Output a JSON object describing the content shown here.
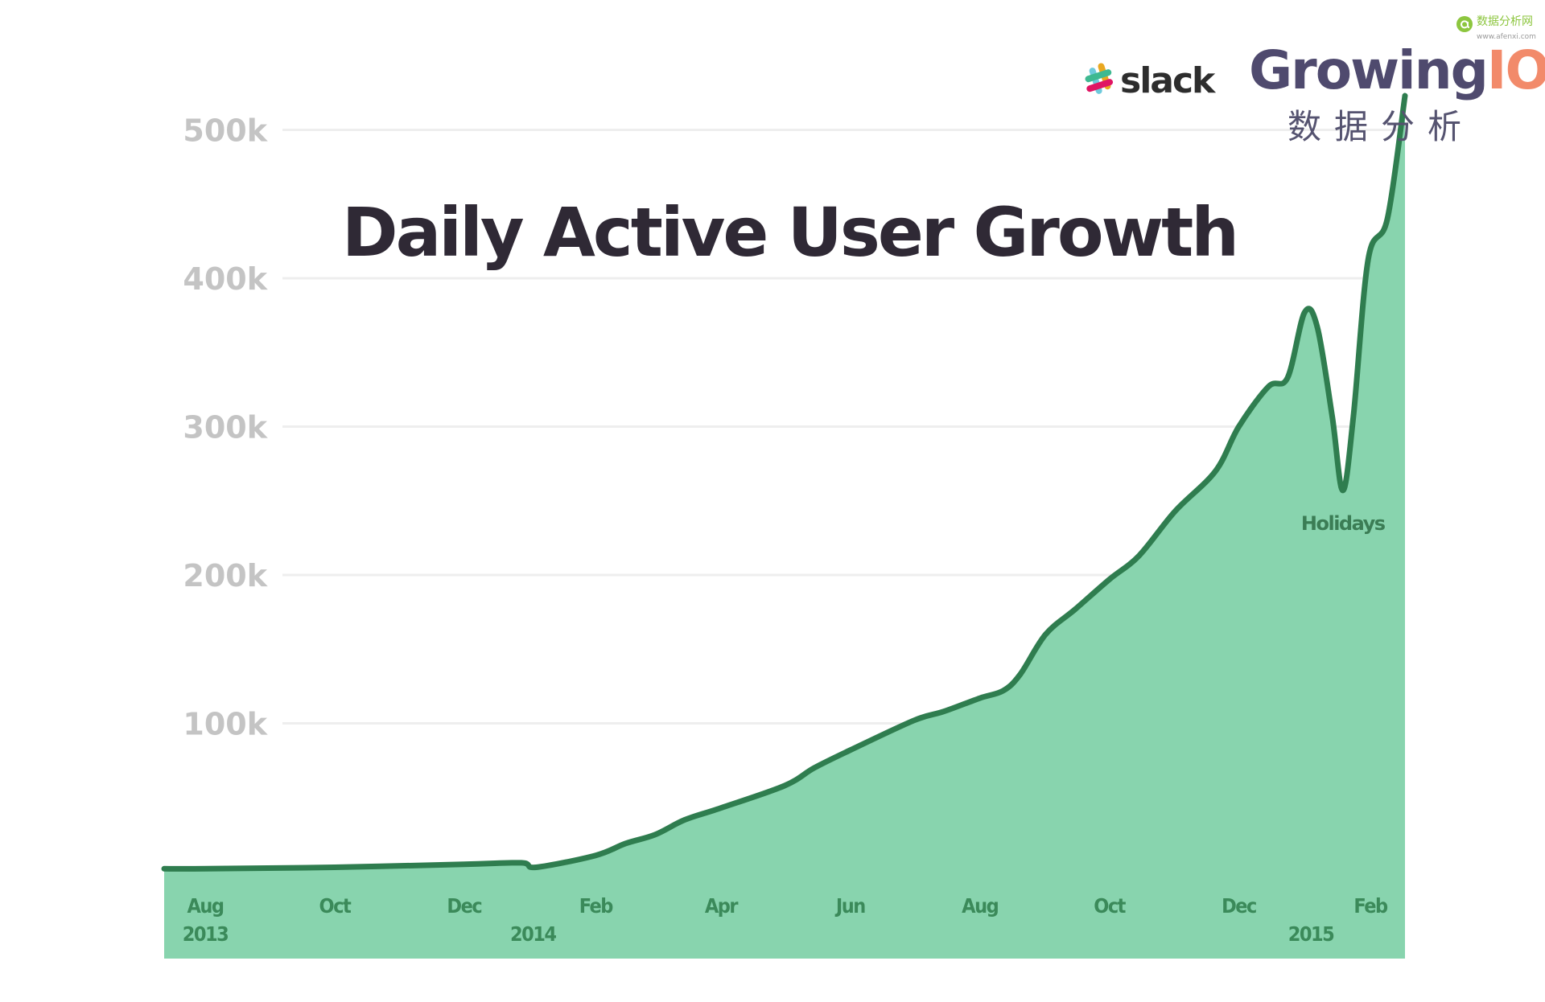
{
  "chart_data": {
    "type": "area",
    "title": "Daily Active User Growth",
    "xlabel": "",
    "ylabel": "",
    "ylim": [
      0,
      500000
    ],
    "yticks": [
      100000,
      200000,
      300000,
      400000,
      500000
    ],
    "ytick_labels": [
      "100k",
      "200k",
      "300k",
      "400k",
      "500k"
    ],
    "xtick_labels": [
      {
        "date": "2013-08-01",
        "label": "Aug",
        "year": "2013"
      },
      {
        "date": "2013-10-01",
        "label": "Oct"
      },
      {
        "date": "2013-12-01",
        "label": "Dec"
      },
      {
        "date": "2014-02-01",
        "label": "Feb",
        "year": "2014"
      },
      {
        "date": "2014-04-01",
        "label": "Apr"
      },
      {
        "date": "2014-06-01",
        "label": "Jun"
      },
      {
        "date": "2014-08-01",
        "label": "Aug"
      },
      {
        "date": "2014-10-01",
        "label": "Oct"
      },
      {
        "date": "2014-12-01",
        "label": "Dec"
      },
      {
        "date": "2015-02-01",
        "label": "Feb",
        "year": "2015"
      }
    ],
    "grid": true,
    "colors": {
      "fill": "#88d4ae",
      "line": "#2f7d4f",
      "grid": "#eeeeee"
    },
    "points": [
      [
        "2013-07-15",
        2000
      ],
      [
        "2013-08-01",
        2000
      ],
      [
        "2013-10-01",
        3000
      ],
      [
        "2013-12-01",
        5000
      ],
      [
        "2013-12-28",
        6000
      ],
      [
        "2014-01-04",
        3000
      ],
      [
        "2014-02-01",
        11000
      ],
      [
        "2014-02-15",
        19000
      ],
      [
        "2014-03-01",
        25000
      ],
      [
        "2014-03-15",
        35000
      ],
      [
        "2014-04-01",
        43000
      ],
      [
        "2014-05-01",
        58000
      ],
      [
        "2014-05-15",
        70000
      ],
      [
        "2014-06-01",
        82000
      ],
      [
        "2014-07-01",
        102000
      ],
      [
        "2014-07-15",
        108000
      ],
      [
        "2014-08-01",
        117000
      ],
      [
        "2014-08-12",
        122000
      ],
      [
        "2014-08-20",
        133000
      ],
      [
        "2014-09-01",
        160000
      ],
      [
        "2014-09-15",
        177000
      ],
      [
        "2014-10-01",
        197000
      ],
      [
        "2014-10-15",
        213000
      ],
      [
        "2014-11-01",
        243000
      ],
      [
        "2014-11-20",
        270000
      ],
      [
        "2014-12-01",
        300000
      ],
      [
        "2014-12-15",
        327000
      ],
      [
        "2014-12-24",
        333000
      ],
      [
        "2015-01-01",
        377000
      ],
      [
        "2015-01-07",
        367000
      ],
      [
        "2015-01-14",
        307000
      ],
      [
        "2015-01-19",
        257000
      ],
      [
        "2015-01-24",
        307000
      ],
      [
        "2015-01-31",
        413000
      ],
      [
        "2015-02-09",
        440000
      ],
      [
        "2015-02-18",
        523000
      ]
    ],
    "annotations": [
      {
        "date": "2015-01-19",
        "text": "Holidays"
      }
    ]
  },
  "logos": {
    "brand": "GrowingIO",
    "brand_sub": "数据分析",
    "slack": "slack",
    "watermark": "数据分析网",
    "watermark_url": "www.afenxi.com"
  }
}
